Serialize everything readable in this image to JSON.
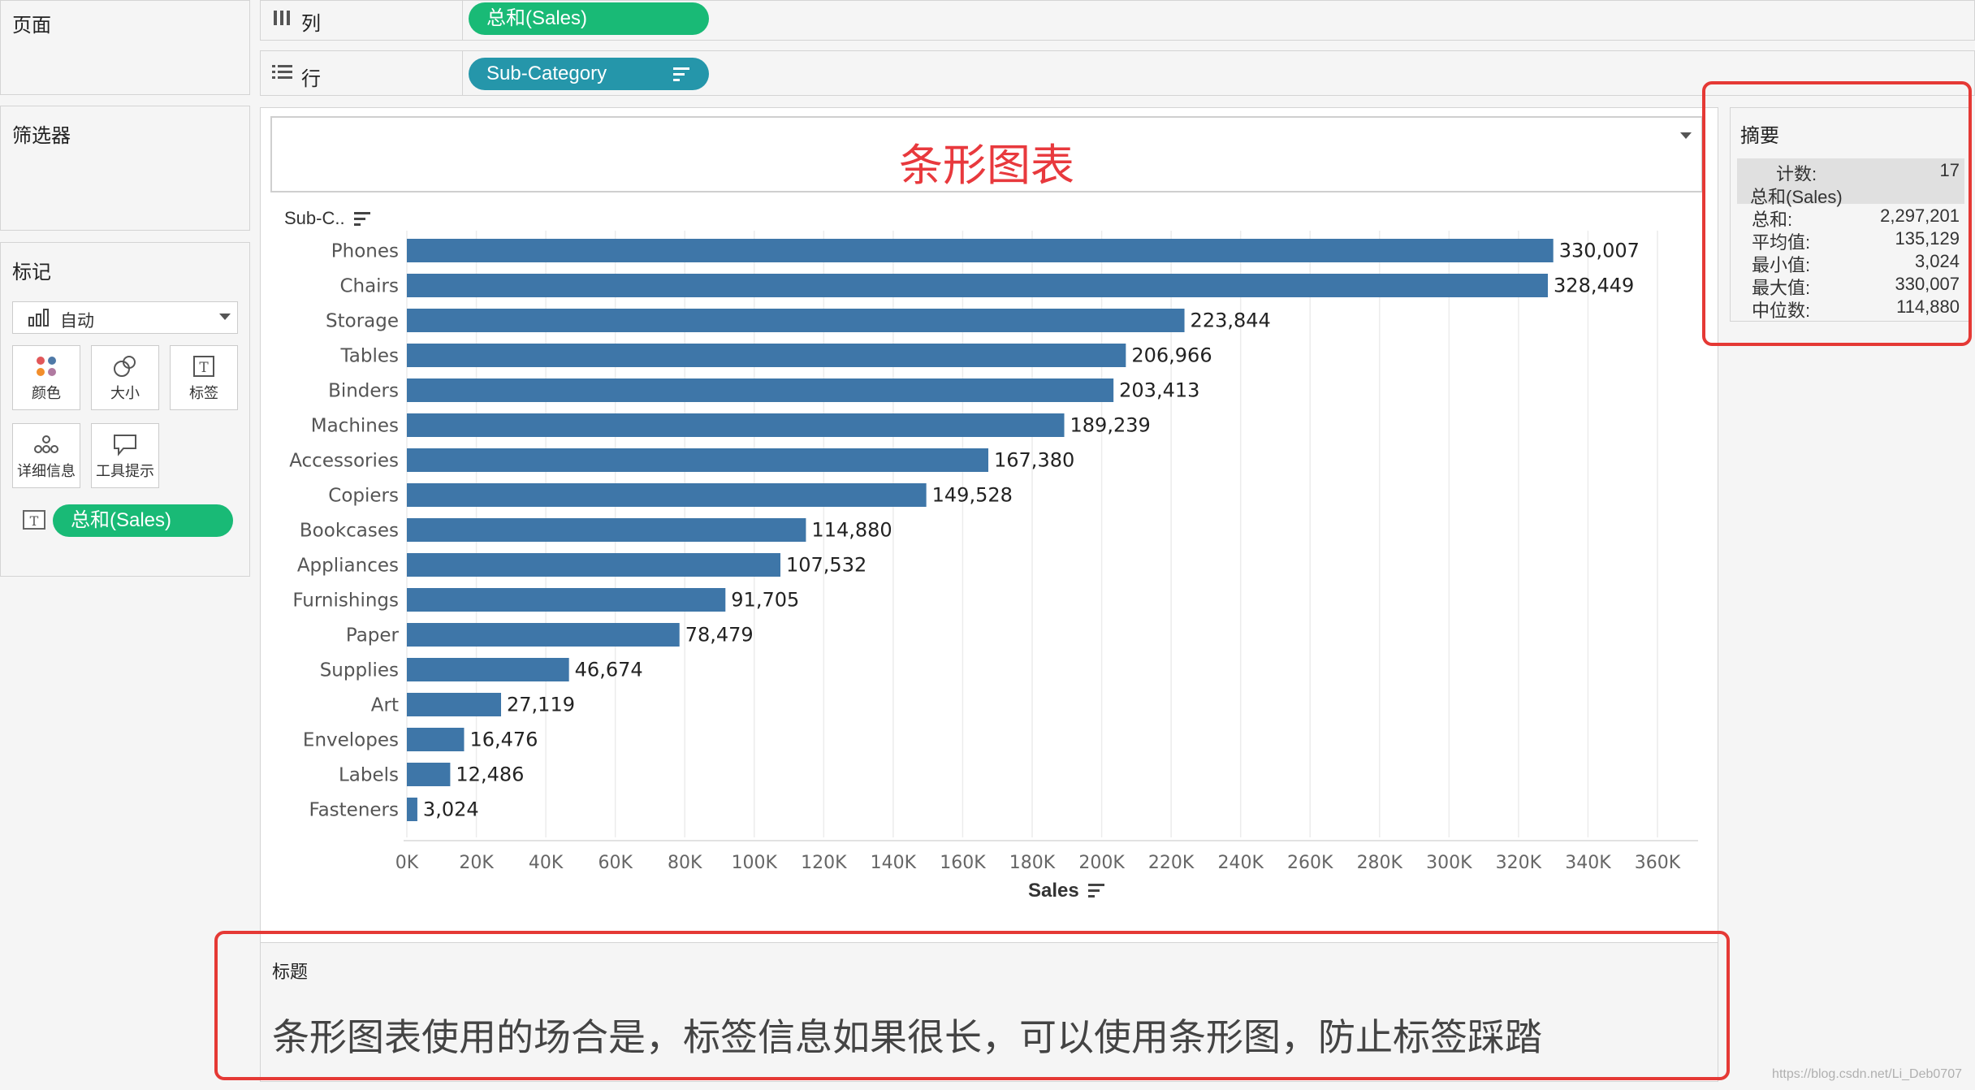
{
  "shelves": {
    "pages_label": "页面",
    "filters_label": "筛选器",
    "columns_label": "列",
    "rows_label": "行",
    "columns_pill": "总和(Sales)",
    "rows_pill": "Sub-Category"
  },
  "marks": {
    "title": "标记",
    "type_value": "自动",
    "buttons": [
      "颜色",
      "大小",
      "标签",
      "详细信息",
      "工具提示"
    ],
    "pill": "总和(Sales)"
  },
  "sheet": {
    "title": "条形图表",
    "caption_title": "标题",
    "caption_text": "条形图表使用的场合是，标签信息如果很长，可以使用条形图，防止标签踩踏"
  },
  "summary": {
    "title": "摘要",
    "count_key": "计数:",
    "count_val": "17",
    "measure": "总和(Sales)",
    "rows": [
      {
        "k": "总和:",
        "v": "2,297,201"
      },
      {
        "k": "平均值:",
        "v": "135,129"
      },
      {
        "k": "最小值:",
        "v": "3,024"
      },
      {
        "k": "最大值:",
        "v": "330,007"
      },
      {
        "k": "中位数:",
        "v": "114,880"
      }
    ]
  },
  "watermark": "https://blog.csdn.net/Li_Deb0707",
  "colors": {
    "bar": "#3e76a8",
    "green_pill": "#19ba76",
    "teal_pill": "#2596aa",
    "title": "#e8393d"
  },
  "chart_data": {
    "type": "bar",
    "orientation": "horizontal",
    "y_header": "Sub-C..",
    "xlabel": "Sales",
    "categories": [
      "Phones",
      "Chairs",
      "Storage",
      "Tables",
      "Binders",
      "Machines",
      "Accessories",
      "Copiers",
      "Bookcases",
      "Appliances",
      "Furnishings",
      "Paper",
      "Supplies",
      "Art",
      "Envelopes",
      "Labels",
      "Fasteners"
    ],
    "values": [
      330007,
      328449,
      223844,
      206966,
      203413,
      189239,
      167380,
      149528,
      114880,
      107532,
      91705,
      78479,
      46674,
      27119,
      16476,
      12486,
      3024
    ],
    "value_labels": [
      "330,007",
      "328,449",
      "223,844",
      "206,966",
      "203,413",
      "189,239",
      "167,380",
      "149,528",
      "114,880",
      "107,532",
      "91,705",
      "78,479",
      "46,674",
      "27,119",
      "16,476",
      "12,486",
      "3,024"
    ],
    "xticks": [
      "0K",
      "20K",
      "40K",
      "60K",
      "80K",
      "100K",
      "120K",
      "140K",
      "160K",
      "180K",
      "200K",
      "220K",
      "240K",
      "260K",
      "280K",
      "300K",
      "320K",
      "340K",
      "360K"
    ],
    "xlim": [
      0,
      360000
    ],
    "grid": true
  }
}
